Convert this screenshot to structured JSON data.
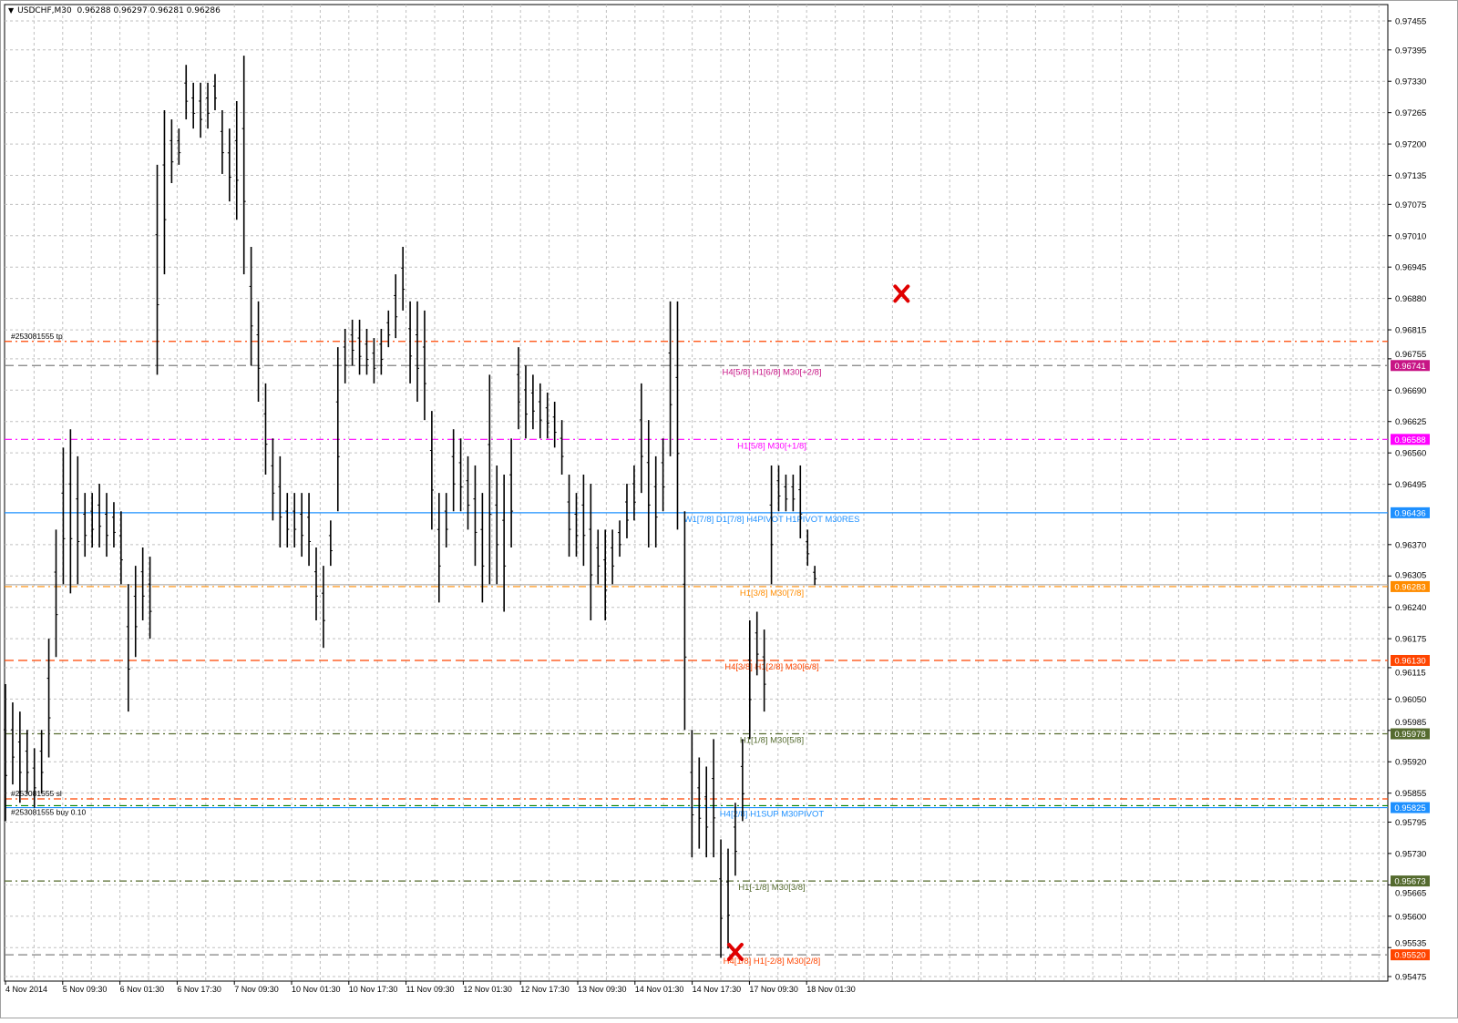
{
  "header": {
    "symbol": "USDCHF,M30",
    "ohlc": "0.96288 0.96297 0.96281 0.96286",
    "menu_icon": "triangle-down-icon"
  },
  "chart_data": {
    "type": "bar",
    "subtype": "ohlc-price-bars",
    "title": "USDCHF,M30",
    "grid": true,
    "bar_color": "#000000",
    "ylim": [
      0.95475,
      0.97455
    ],
    "y_ticks": [
      "0.97455",
      "0.97395",
      "0.97330",
      "0.97265",
      "0.97200",
      "0.97135",
      "0.97075",
      "0.97010",
      "0.96945",
      "0.96880",
      "0.96815",
      "0.96755",
      "0.96690",
      "0.96625",
      "0.96560",
      "0.96495",
      "0.96370",
      "0.96305",
      "0.96240",
      "0.96175",
      "0.96115",
      "0.96050",
      "0.95985",
      "0.95920",
      "0.95855",
      "0.95795",
      "0.95730",
      "0.95665",
      "0.95600",
      "0.95535",
      "0.95475"
    ],
    "x_ticks": [
      "4 Nov 2014",
      "5 Nov 09:30",
      "6 Nov 01:30",
      "6 Nov 17:30",
      "7 Nov 09:30",
      "10 Nov 01:30",
      "10 Nov 17:30",
      "11 Nov 09:30",
      "12 Nov 01:30",
      "12 Nov 17:30",
      "13 Nov 09:30",
      "14 Nov 01:30",
      "14 Nov 17:30",
      "17 Nov 09:30",
      "18 Nov 01:30"
    ],
    "bars_high_low": [
      [
        0.96081,
        0.95797
      ],
      [
        0.96043,
        0.95873
      ],
      [
        0.96024,
        0.95835
      ],
      [
        0.95986,
        0.95854
      ],
      [
        0.95948,
        0.95825
      ],
      [
        0.95986,
        0.95854
      ],
      [
        0.96175,
        0.95929
      ],
      [
        0.96401,
        0.96137
      ],
      [
        0.96571,
        0.96288
      ],
      [
        0.96609,
        0.96269
      ],
      [
        0.96553,
        0.96288
      ],
      [
        0.96477,
        0.96345
      ],
      [
        0.96477,
        0.96364
      ],
      [
        0.96496,
        0.96364
      ],
      [
        0.96477,
        0.96345
      ],
      [
        0.96458,
        0.96364
      ],
      [
        0.96439,
        0.96288
      ],
      [
        0.96288,
        0.96024
      ],
      [
        0.96326,
        0.96137
      ],
      [
        0.96364,
        0.96213
      ],
      [
        0.96345,
        0.96175
      ],
      [
        0.97157,
        0.96722
      ],
      [
        0.9727,
        0.9693
      ],
      [
        0.97251,
        0.97119
      ],
      [
        0.97232,
        0.97157
      ],
      [
        0.97364,
        0.97251
      ],
      [
        0.97327,
        0.97232
      ],
      [
        0.97327,
        0.97213
      ],
      [
        0.97327,
        0.97232
      ],
      [
        0.97345,
        0.9727
      ],
      [
        0.9727,
        0.97138
      ],
      [
        0.97232,
        0.97081
      ],
      [
        0.97289,
        0.97043
      ],
      [
        0.97383,
        0.9693
      ],
      [
        0.96987,
        0.96741
      ],
      [
        0.96874,
        0.96666
      ],
      [
        0.96704,
        0.96515
      ],
      [
        0.9659,
        0.9642
      ],
      [
        0.96553,
        0.96364
      ],
      [
        0.96477,
        0.96364
      ],
      [
        0.96477,
        0.96364
      ],
      [
        0.96477,
        0.96345
      ],
      [
        0.96477,
        0.96326
      ],
      [
        0.96364,
        0.96213
      ],
      [
        0.96326,
        0.96156
      ],
      [
        0.9642,
        0.96326
      ],
      [
        0.96779,
        0.96439
      ],
      [
        0.96817,
        0.96704
      ],
      [
        0.96836,
        0.96741
      ],
      [
        0.96836,
        0.96722
      ],
      [
        0.96817,
        0.96722
      ],
      [
        0.96798,
        0.96704
      ],
      [
        0.96817,
        0.96722
      ],
      [
        0.96855,
        0.96779
      ],
      [
        0.9693,
        0.96798
      ],
      [
        0.96987,
        0.96855
      ],
      [
        0.96874,
        0.96704
      ],
      [
        0.96874,
        0.96666
      ],
      [
        0.96855,
        0.96628
      ],
      [
        0.96647,
        0.96401
      ],
      [
        0.96477,
        0.9625
      ],
      [
        0.96477,
        0.96364
      ],
      [
        0.96609,
        0.96439
      ],
      [
        0.9659,
        0.96439
      ],
      [
        0.96553,
        0.96401
      ],
      [
        0.96534,
        0.96326
      ],
      [
        0.96477,
        0.9625
      ],
      [
        0.96722,
        0.96288
      ],
      [
        0.96534,
        0.96288
      ],
      [
        0.96515,
        0.96231
      ],
      [
        0.9659,
        0.96364
      ],
      [
        0.96779,
        0.96609
      ],
      [
        0.96741,
        0.9659
      ],
      [
        0.96722,
        0.96609
      ],
      [
        0.96704,
        0.9659
      ],
      [
        0.96685,
        0.9659
      ],
      [
        0.96666,
        0.96571
      ],
      [
        0.96628,
        0.96515
      ],
      [
        0.96515,
        0.96345
      ],
      [
        0.96477,
        0.96345
      ],
      [
        0.96515,
        0.96326
      ],
      [
        0.96496,
        0.96213
      ],
      [
        0.96401,
        0.96288
      ],
      [
        0.96401,
        0.96213
      ],
      [
        0.96401,
        0.96288
      ],
      [
        0.9642,
        0.96345
      ],
      [
        0.96496,
        0.96383
      ],
      [
        0.96534,
        0.9642
      ],
      [
        0.96704,
        0.96477
      ],
      [
        0.96628,
        0.96364
      ],
      [
        0.96553,
        0.96364
      ],
      [
        0.9659,
        0.96439
      ],
      [
        0.96874,
        0.96553
      ],
      [
        0.96874,
        0.96401
      ],
      [
        0.96439,
        0.95986
      ],
      [
        0.95986,
        0.95722
      ],
      [
        0.95929,
        0.9574
      ],
      [
        0.9591,
        0.95722
      ],
      [
        0.95967,
        0.95722
      ],
      [
        0.95759,
        0.95514
      ],
      [
        0.9574,
        0.95533
      ],
      [
        0.95835,
        0.95684
      ],
      [
        0.95967,
        0.95797
      ],
      [
        0.96213,
        0.95967
      ],
      [
        0.96231,
        0.96099
      ],
      [
        0.96194,
        0.96024
      ],
      [
        0.96534,
        0.96288
      ],
      [
        0.96534,
        0.96439
      ],
      [
        0.96515,
        0.96439
      ],
      [
        0.96515,
        0.96439
      ],
      [
        0.96534,
        0.96383
      ],
      [
        0.96401,
        0.96326
      ],
      [
        0.96326,
        0.96286
      ]
    ],
    "current_price": "0.96283",
    "levels": [
      {
        "price": 0.96741,
        "price_label": "0.96741",
        "label": "H4[5/8] H1[6/8] M30[+2/8]",
        "color": "#C71585",
        "style": "dashed",
        "line_color": "#808080"
      },
      {
        "price": 0.96588,
        "price_label": "0.96588",
        "label": "H1[5/8] M30[+1/8]",
        "color": "#FF00FF",
        "style": "dash-dot",
        "line_color": "#FF00FF"
      },
      {
        "price": 0.96436,
        "price_label": "0.96436",
        "label": "W1[7/8] D1[7/8] H4PIVOT H1PIVOT M30RES",
        "color": "#1E90FF",
        "style": "solid",
        "line_color": "#1E90FF"
      },
      {
        "price": 0.96283,
        "price_label": "0.96283",
        "label": "H1[3/8] M30[7/8]",
        "color": "#FF8C00",
        "style": "dash-dot",
        "line_color": "#FF8C00"
      },
      {
        "price": 0.9613,
        "price_label": "0.96130",
        "label": "H4[3/8] H1[2/8] M30[6/8]",
        "color": "#FF4500",
        "style": "dashed",
        "line_color": "#FF4500"
      },
      {
        "price": 0.95978,
        "price_label": "0.95978",
        "label": "H1[1/8] M30[5/8]",
        "color": "#556B2F",
        "style": "dash-dot",
        "line_color": "#556B2F"
      },
      {
        "price": 0.95825,
        "price_label": "0.95825",
        "label": "H4[2/8] H1SUP M30PIVOT",
        "color": "#1E90FF",
        "style": "solid",
        "line_color": "#1E90FF"
      },
      {
        "price": 0.95673,
        "price_label": "0.95673",
        "label": "H1[-1/8] M30[3/8]",
        "color": "#556B2F",
        "style": "dash-dot",
        "line_color": "#556B2F"
      },
      {
        "price": 0.9552,
        "price_label": "0.95520",
        "label": "H4[1/8] H1[-2/8] M30[2/8]",
        "color": "#FF4500",
        "style": "dashed",
        "line_color": "#808080"
      }
    ],
    "trade_lines": [
      {
        "price": 0.96791,
        "label": "#253081555 tp",
        "color": "#FF4500",
        "style": "dash-dot"
      },
      {
        "price": 0.95843,
        "label": "#253081555 sl",
        "color": "#FF4500",
        "style": "dash-dot"
      },
      {
        "price": 0.95829,
        "label": "#253081555 buy 0.10",
        "color": "#008000",
        "style": "dash-dot"
      }
    ],
    "markers": [
      {
        "icon": "red-x-icon",
        "price": 0.9689,
        "bar_index": 124
      },
      {
        "icon": "red-x-icon",
        "price": 0.95526,
        "bar_index": 101
      }
    ]
  }
}
